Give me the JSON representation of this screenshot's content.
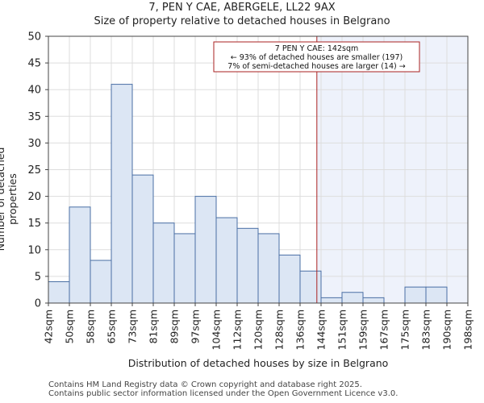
{
  "chart_data": {
    "type": "histogram",
    "title": "7, PEN Y CAE, ABERGELE, LL22 9AX",
    "subtitle": "Size of property relative to detached houses in Belgrano",
    "xlabel": "Distribution of detached houses by size in Belgrano",
    "ylabel": "Number of detached properties",
    "ylim": [
      0,
      50
    ],
    "yticks": [
      0,
      5,
      10,
      15,
      20,
      25,
      30,
      35,
      40,
      45,
      50
    ],
    "categories": [
      "42sqm",
      "50sqm",
      "58sqm",
      "65sqm",
      "73sqm",
      "81sqm",
      "89sqm",
      "97sqm",
      "104sqm",
      "112sqm",
      "120sqm",
      "128sqm",
      "136sqm",
      "144sqm",
      "151sqm",
      "159sqm",
      "167sqm",
      "175sqm",
      "183sqm",
      "190sqm",
      "198sqm"
    ],
    "values": [
      4,
      18,
      8,
      41,
      24,
      15,
      13,
      20,
      16,
      14,
      13,
      9,
      6,
      1,
      2,
      1,
      0,
      3,
      3,
      0
    ],
    "bar_color": "#dce6f4",
    "bar_edge_color": "#4a6fa5",
    "grid": true,
    "marker": {
      "value_sqm": 142,
      "bin_position": 12.8,
      "color": "#aa2222",
      "shade_color": "#eef2fb"
    },
    "annotation": {
      "line1": "7 PEN Y CAE: 142sqm",
      "line2": "← 93% of detached houses are smaller (197)",
      "line3": "7% of semi-detached houses are larger (14) →"
    }
  },
  "footer": {
    "line1": "Contains HM Land Registry data © Crown copyright and database right 2025.",
    "line2": "Contains public sector information licensed under the Open Government Licence v3.0."
  }
}
